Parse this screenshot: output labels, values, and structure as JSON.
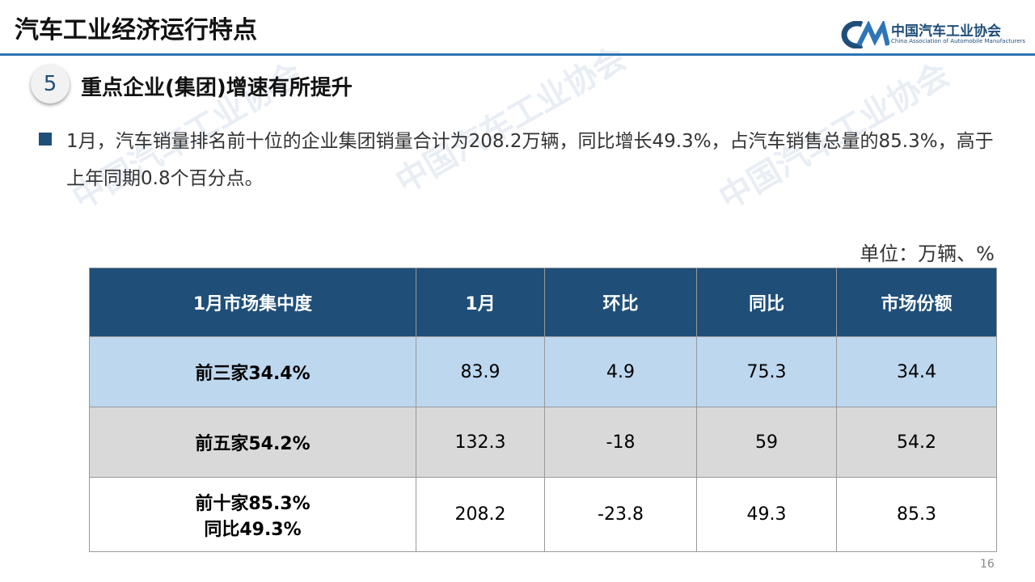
{
  "header": {
    "title": "汽车工业经济运行特点"
  },
  "logo": {
    "name": "中国汽车工业协会",
    "english": "China Association of Automobile Manufacturers"
  },
  "section": {
    "number": "5",
    "title": "重点企业(集团)增速有所提升"
  },
  "bullet": {
    "text": "1月，汽车销量排名前十位的企业集团销量合计为208.2万辆，同比增长49.3%，占汽车销售总量的85.3%，高于上年同期0.8个百分点。"
  },
  "unit": "单位：万辆、%",
  "table": {
    "columns": [
      "1月市场集中度",
      "1月",
      "环比",
      "同比",
      "市场份额"
    ],
    "rows": [
      [
        [
          "前三家34.4%"
        ],
        "83.9",
        "4.9",
        "75.3",
        "34.4"
      ],
      [
        [
          "前五家54.2%"
        ],
        "132.3",
        "-18",
        "59",
        "54.2"
      ],
      [
        [
          "前十家85.3%",
          "同比49.3%"
        ],
        "208.2",
        "-23.8",
        "49.3",
        "85.3"
      ]
    ]
  },
  "page_number": "16"
}
